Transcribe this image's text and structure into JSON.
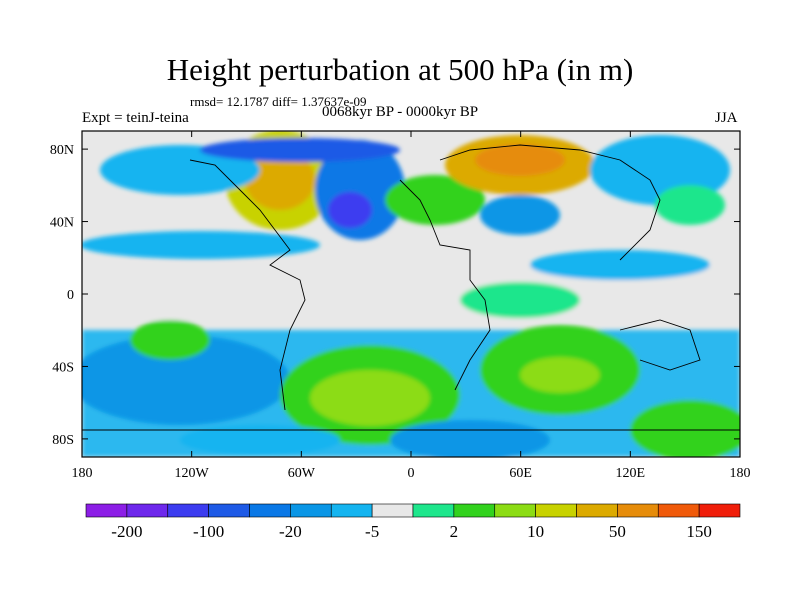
{
  "chart_data": {
    "type": "heatmap",
    "title": "Height perturbation at 500 hPa (in m)",
    "stats_line": "rmsd= 12.1787 diff= 1.37637e-09",
    "left_label": "Expt = teinJ-teina",
    "center_label": "0068kyr BP - 0000kyr BP",
    "right_label": "JJA",
    "x_ticks": [
      "180",
      "120W",
      "60W",
      "0",
      "60E",
      "120E",
      "180"
    ],
    "y_ticks": [
      "80N",
      "40N",
      "0",
      "40S",
      "80S"
    ],
    "xlim": [
      -180,
      180
    ],
    "ylim": [
      -90,
      90
    ],
    "colorbar": {
      "labels": [
        "-200",
        "-100",
        "-20",
        "-5",
        "2",
        "10",
        "50",
        "150"
      ],
      "colors": [
        "#8c1ee6",
        "#6e28ec",
        "#3c3cf0",
        "#1e5ae6",
        "#0a78e6",
        "#0a96e6",
        "#14b4f0",
        "#e8e8e8",
        "#1ee68c",
        "#32d21e",
        "#8cdc14",
        "#c8d200",
        "#dcaa00",
        "#e68c0a",
        "#f05a0a",
        "#f01e0a"
      ]
    }
  }
}
